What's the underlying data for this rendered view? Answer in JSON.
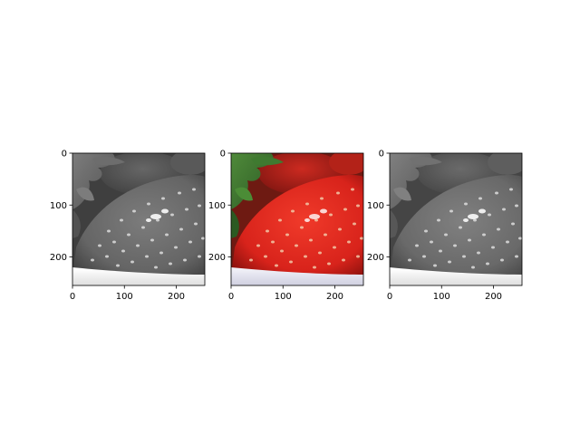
{
  "figure": {
    "background": "#ffffff",
    "axis_color": "#000000"
  },
  "chart_data": [
    {
      "type": "image",
      "panel": "grayscale",
      "colormap": "gray",
      "xlim": [
        0,
        255
      ],
      "ylim": [
        255,
        0
      ],
      "xticks": [
        0,
        100,
        200
      ],
      "yticks": [
        0,
        100,
        200
      ],
      "xtick_labels": [
        "0",
        "100",
        "200"
      ],
      "ytick_labels": [
        "0",
        "100",
        "200"
      ]
    },
    {
      "type": "image",
      "panel": "color",
      "colormap": "rgb",
      "xlim": [
        0,
        255
      ],
      "ylim": [
        255,
        0
      ],
      "xticks": [
        0,
        100,
        200
      ],
      "yticks": [
        0,
        100,
        200
      ],
      "xtick_labels": [
        "0",
        "100",
        "200"
      ],
      "ytick_labels": [
        "0",
        "100",
        "200"
      ]
    },
    {
      "type": "image",
      "panel": "grayscale-reconstructed",
      "colormap": "gray",
      "xlim": [
        0,
        255
      ],
      "ylim": [
        255,
        0
      ],
      "xticks": [
        0,
        100,
        200
      ],
      "yticks": [
        0,
        100,
        200
      ],
      "xtick_labels": [
        "0",
        "100",
        "200"
      ],
      "ytick_labels": [
        "0",
        "100",
        "200"
      ]
    }
  ]
}
